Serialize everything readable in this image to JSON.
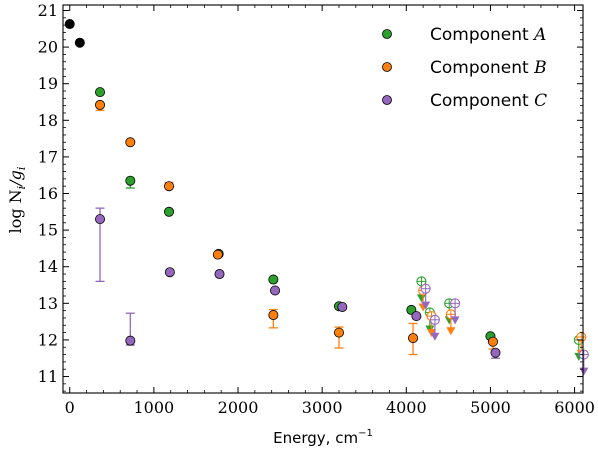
{
  "chart_data": {
    "type": "scatter",
    "xlabel": "Energy, cm",
    "xlabel_sup": "−1",
    "ylabel": "log N",
    "ylabel_sub": "i",
    "ylabel_den": "/g",
    "ylabel_den_sub": "i",
    "xlim": [
      -80,
      6100
    ],
    "ylim": [
      10.55,
      21.15
    ],
    "xticks": [
      0,
      1000,
      2000,
      3000,
      4000,
      5000,
      6000
    ],
    "yticks": [
      11,
      12,
      13,
      14,
      15,
      16,
      17,
      18,
      19,
      20,
      21
    ],
    "legend": "top-right",
    "grid": false,
    "colors": {
      "A": "#2ca02c",
      "B": "#ff7f0e",
      "C": "#9467bd",
      "unassigned": "#000000"
    },
    "series": [
      {
        "name": "Component",
        "name_italic": "A",
        "color": "#2ca02c",
        "points": [
          {
            "x": 360,
            "y": 18.77
          },
          {
            "x": 720,
            "y": 16.35,
            "err_lo": 0.2
          },
          {
            "x": 1180,
            "y": 15.5
          },
          {
            "x": 1770,
            "y": 14.35
          },
          {
            "x": 2420,
            "y": 13.65
          },
          {
            "x": 3200,
            "y": 12.92
          },
          {
            "x": 4060,
            "y": 12.82
          },
          {
            "x": 5000,
            "y": 12.1
          }
        ],
        "upper_limits": [
          {
            "x": 4180,
            "y": 13.6
          },
          {
            "x": 4280,
            "y": 12.75
          },
          {
            "x": 4510,
            "y": 13.0
          },
          {
            "x": 6050,
            "y": 12.0
          }
        ]
      },
      {
        "name": "Component",
        "name_italic": "B",
        "color": "#ff7f0e",
        "points": [
          {
            "x": 360,
            "y": 18.42,
            "err_lo": 0.15
          },
          {
            "x": 720,
            "y": 17.4
          },
          {
            "x": 1180,
            "y": 16.2,
            "err_hi": 0.1
          },
          {
            "x": 1760,
            "y": 14.33
          },
          {
            "x": 2420,
            "y": 12.68,
            "err_lo": 0.35,
            "err_hi": 0.15
          },
          {
            "x": 3200,
            "y": 12.2,
            "err_lo": 0.42,
            "err_hi": 0.15
          },
          {
            "x": 4080,
            "y": 12.05,
            "err_lo": 0.45,
            "err_hi": 0.4
          },
          {
            "x": 5030,
            "y": 11.95,
            "err_lo": 0.2
          }
        ],
        "upper_limits": [
          {
            "x": 4200,
            "y": 13.35
          },
          {
            "x": 4300,
            "y": 12.65
          },
          {
            "x": 4530,
            "y": 12.7
          },
          {
            "x": 6080,
            "y": 12.08
          }
        ]
      },
      {
        "name": "Component",
        "name_italic": "C",
        "color": "#9467bd",
        "points": [
          {
            "x": 360,
            "y": 15.3,
            "err_lo": 1.7,
            "err_hi": 0.3
          },
          {
            "x": 720,
            "y": 11.98,
            "err_lo": 0.12,
            "err_hi": 0.75
          },
          {
            "x": 1190,
            "y": 13.85
          },
          {
            "x": 1780,
            "y": 13.8
          },
          {
            "x": 2440,
            "y": 13.35
          },
          {
            "x": 3240,
            "y": 12.9
          },
          {
            "x": 4120,
            "y": 12.65
          },
          {
            "x": 5060,
            "y": 11.65,
            "err_lo": 0.15
          }
        ],
        "upper_limits": [
          {
            "x": 4230,
            "y": 13.4
          },
          {
            "x": 4340,
            "y": 12.55
          },
          {
            "x": 4580,
            "y": 13.0
          },
          {
            "x": 6110,
            "y": 11.6
          }
        ]
      },
      {
        "name": "",
        "color": "#000000",
        "points": [
          {
            "x": 0,
            "y": 20.63
          },
          {
            "x": 120,
            "y": 20.12
          }
        ]
      }
    ]
  }
}
